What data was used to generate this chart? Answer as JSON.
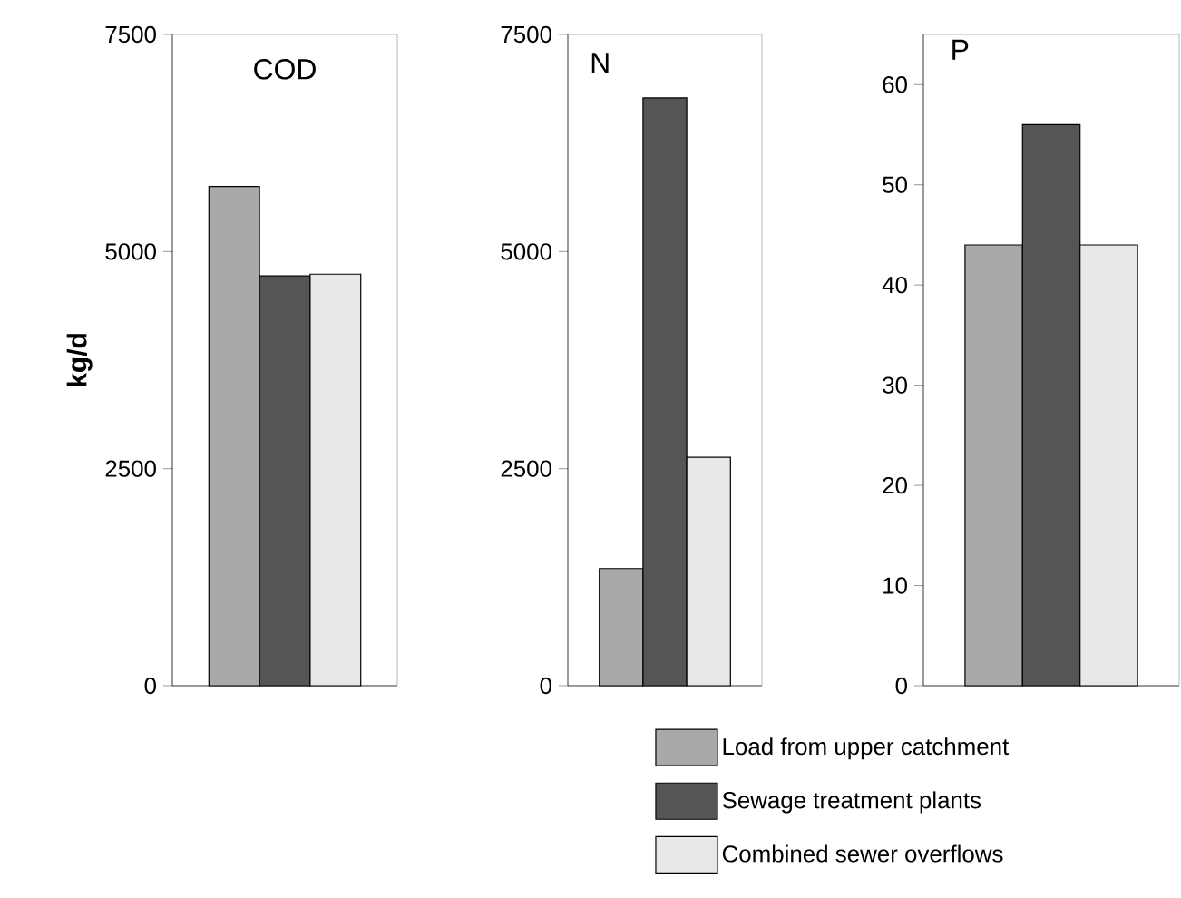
{
  "chart_data": [
    {
      "type": "bar",
      "title": "COD",
      "ylabel": "kg/d",
      "categories": [
        null
      ],
      "series": [
        {
          "color": "#a9a9a9",
          "values": [
            5750
          ]
        },
        {
          "color": "#555555",
          "values": [
            4720
          ]
        },
        {
          "color": "#e8e8e8",
          "values": [
            4740
          ]
        }
      ],
      "ylim": [
        0,
        7500
      ],
      "yticks": [
        0,
        2500,
        5000,
        7500
      ]
    },
    {
      "type": "bar",
      "title": "N",
      "categories": [
        null
      ],
      "series": [
        {
          "color": "#a9a9a9",
          "values": [
            1350
          ]
        },
        {
          "color": "#555555",
          "values": [
            6770
          ]
        },
        {
          "color": "#e8e8e8",
          "values": [
            2630
          ]
        }
      ],
      "ylim": [
        0,
        7500
      ],
      "yticks": [
        0,
        2500,
        5000,
        7500
      ]
    },
    {
      "type": "bar",
      "title": "P",
      "categories": [
        null
      ],
      "series": [
        {
          "name": "Load from upper catchment",
          "color": "#a9a9a9",
          "values": [
            44
          ]
        },
        {
          "name": "Sewage treatment plants",
          "color": "#555555",
          "values": [
            56
          ]
        },
        {
          "name": "Combined sewer overflows",
          "color": "#e8e8e8",
          "values": [
            44
          ]
        }
      ],
      "ylim": [
        0,
        65
      ],
      "yticks": [
        0,
        10,
        20,
        30,
        40,
        50,
        60
      ],
      "legend": "bottom"
    }
  ]
}
